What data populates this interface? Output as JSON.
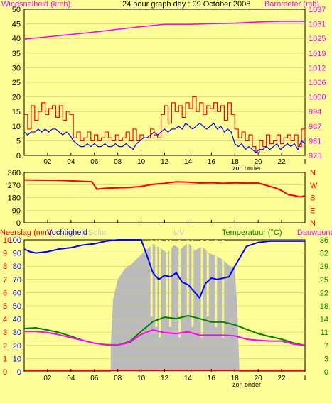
{
  "colors": {
    "background": "#ffff99",
    "wind_avg": "#0000ff",
    "wind_gust": "#ff0000",
    "barometer": "#ff00ff",
    "wind_dir": "#ff0000",
    "humidity": "#0000ff",
    "temperature": "#008000",
    "dewpoint": "#ff00ff",
    "solar": "#bbbbbb",
    "uv": "#ffff88",
    "rain": "#ff0000"
  },
  "chart_data": [
    {
      "type": "line",
      "title": "24 hour graph day : 09 October 2008",
      "ylabel_left": "Windsnelheid (kmh)",
      "ylabel_right": "Barometer (mb)",
      "x_ticks": [
        "02",
        "04",
        "06",
        "08",
        "10",
        "12",
        "14",
        "16",
        "18",
        "20",
        "22",
        "I"
      ],
      "x_note": "zon onder",
      "y_left": {
        "ticks": [
          "0",
          "5",
          "10",
          "15",
          "20",
          "25",
          "30",
          "35",
          "40",
          "45",
          "50"
        ],
        "ylim": [
          0,
          50
        ]
      },
      "y_right": {
        "ticks": [
          "975",
          "981",
          "987",
          "994",
          "1000",
          "1006",
          "1012",
          "1019",
          "1025",
          "1031",
          "1037"
        ],
        "ylim": [
          975,
          1037
        ]
      },
      "series": [
        {
          "key": "gust",
          "axis": "left",
          "color": "#ff0000",
          "step": true,
          "x": [
            0,
            0.3,
            0.6,
            0.9,
            1.2,
            1.5,
            1.8,
            2.1,
            2.4,
            2.7,
            3.0,
            3.3,
            3.6,
            3.9,
            4.2,
            4.5,
            4.8,
            5.1,
            5.4,
            5.7,
            6.0,
            6.3,
            6.6,
            6.9,
            7.2,
            7.5,
            7.8,
            8.1,
            8.4,
            8.7,
            9.0,
            9.3,
            9.6,
            9.9,
            10.2,
            10.5,
            10.8,
            11.1,
            11.4,
            11.7,
            12.0,
            12.3,
            12.6,
            12.9,
            13.2,
            13.5,
            13.8,
            14.1,
            14.4,
            14.7,
            15.0,
            15.3,
            15.6,
            15.9,
            16.2,
            16.5,
            16.8,
            17.1,
            17.4,
            17.7,
            18.0,
            18.3,
            18.6,
            18.9,
            19.2,
            19.5,
            19.8,
            20.1,
            20.4,
            20.7,
            21.0,
            21.3,
            21.6,
            21.9,
            22.2,
            22.5,
            22.8,
            23.1,
            23.4,
            23.7,
            24.0
          ],
          "values": [
            14,
            9,
            17,
            12,
            15,
            18,
            14,
            16,
            17,
            13,
            17,
            12,
            15,
            14,
            6,
            8,
            5,
            6,
            8,
            5,
            7,
            5,
            6,
            8,
            6,
            5,
            7,
            5,
            6,
            8,
            5,
            9,
            5,
            7,
            6,
            6,
            9,
            7,
            6,
            14,
            17,
            11,
            18,
            15,
            17,
            13,
            18,
            16,
            20,
            15,
            18,
            14,
            17,
            16,
            18,
            15,
            17,
            12,
            18,
            14,
            9,
            6,
            8,
            5,
            7,
            3,
            1,
            5,
            3,
            7,
            4,
            5,
            7,
            4,
            6,
            7,
            5,
            7,
            3,
            9,
            6
          ]
        },
        {
          "key": "avg",
          "axis": "left",
          "color": "#0000ff",
          "step": false,
          "x": [
            0,
            0.3,
            0.6,
            0.9,
            1.2,
            1.5,
            1.8,
            2.1,
            2.4,
            2.7,
            3.0,
            3.3,
            3.6,
            3.9,
            4.2,
            4.5,
            4.8,
            5.1,
            5.4,
            5.7,
            6.0,
            6.3,
            6.6,
            6.9,
            7.2,
            7.5,
            7.8,
            8.1,
            8.4,
            8.7,
            9.0,
            9.3,
            9.6,
            9.9,
            10.2,
            10.5,
            10.8,
            11.1,
            11.4,
            11.7,
            12.0,
            12.3,
            12.6,
            12.9,
            13.2,
            13.5,
            13.8,
            14.1,
            14.4,
            14.7,
            15.0,
            15.3,
            15.6,
            15.9,
            16.2,
            16.5,
            16.8,
            17.1,
            17.4,
            17.7,
            18.0,
            18.3,
            18.6,
            18.9,
            19.2,
            19.5,
            19.8,
            20.1,
            20.4,
            20.7,
            21.0,
            21.3,
            21.6,
            21.9,
            22.2,
            22.5,
            22.8,
            23.1,
            23.4,
            23.7,
            24.0
          ],
          "values": [
            8,
            7,
            8,
            8,
            9,
            8,
            9,
            8,
            9,
            9,
            8,
            7,
            8,
            7,
            5,
            4,
            3,
            3,
            4,
            3,
            4,
            3,
            3,
            4,
            3,
            3,
            4,
            3,
            3,
            4,
            3,
            2,
            4,
            5,
            6,
            6,
            7,
            8,
            7,
            8,
            9,
            8,
            9,
            9,
            10,
            9,
            11,
            10,
            9,
            10,
            11,
            10,
            9,
            10,
            11,
            9,
            10,
            8,
            9,
            8,
            4,
            3,
            4,
            2,
            3,
            2,
            1,
            2,
            2,
            3,
            2,
            3,
            4,
            2,
            3,
            4,
            3,
            4,
            2,
            5,
            4
          ]
        },
        {
          "key": "barometer",
          "axis": "right",
          "color": "#ff00ff",
          "step": false,
          "x": [
            0,
            2,
            4,
            6,
            8,
            10,
            12,
            14,
            16,
            18,
            20,
            22,
            24
          ],
          "values": [
            1024.3,
            1025.3,
            1026.3,
            1027.3,
            1028.5,
            1029.6,
            1030.6,
            1030.6,
            1030.9,
            1031.1,
            1031.6,
            1031.9,
            1031.9
          ]
        }
      ]
    },
    {
      "type": "line",
      "y_left": {
        "ticks": [
          "0",
          "90",
          "180",
          "270",
          "360"
        ],
        "ylim": [
          0,
          360
        ]
      },
      "y_right": {
        "ticks": [
          "N",
          "W",
          "S",
          "E",
          "N"
        ]
      },
      "series": [
        {
          "key": "direction",
          "color": "#ff0000",
          "x": [
            0,
            1,
            2,
            3,
            4,
            5,
            5.8,
            6.2,
            7,
            8,
            9,
            10,
            11,
            12,
            13,
            14,
            15,
            16,
            17,
            18,
            19,
            20,
            20.6,
            21,
            21.6,
            22,
            22.6,
            23,
            23.6,
            24
          ],
          "values": [
            306,
            305,
            304,
            303,
            300,
            296,
            293,
            240,
            247,
            250,
            252,
            260,
            275,
            282,
            293,
            290,
            284,
            286,
            282,
            285,
            283,
            284,
            270,
            260,
            245,
            230,
            200,
            196,
            185,
            192
          ]
        }
      ]
    },
    {
      "type": "line",
      "legend": [
        "Neerslag (mm)",
        "Vochtigheid",
        "Solar",
        "UV",
        "Temperatuur (°C)",
        "Dauwpunt"
      ],
      "x_ticks": [
        "02",
        "04",
        "06",
        "08",
        "10",
        "12",
        "14",
        "16",
        "18",
        "20",
        "22",
        "I"
      ],
      "x_note": "zon onder",
      "y_left_outer": {
        "ticks": [
          "0",
          "1",
          "2",
          "3",
          "4",
          "5",
          "6",
          "7",
          "8",
          "9",
          "10"
        ]
      },
      "y_left_inner": {
        "ticks": [
          "0",
          "10",
          "20",
          "30",
          "40",
          "50",
          "60",
          "70",
          "80",
          "90",
          "100"
        ],
        "ylim": [
          0,
          100
        ]
      },
      "y_right": {
        "ticks": [
          "0",
          "3",
          "7",
          "11",
          "14",
          "18",
          "22",
          "25",
          "29",
          "32",
          "36"
        ],
        "ylim": [
          0,
          36
        ]
      },
      "series": [
        {
          "key": "humidity",
          "color": "#0000ff",
          "axis": "inner",
          "x": [
            0,
            0.5,
            1,
            2,
            3,
            4,
            5,
            6,
            7,
            8,
            9,
            9.5,
            10,
            10.5,
            11,
            11.5,
            12,
            12.5,
            13,
            13.5,
            14,
            14.5,
            15,
            15.5,
            16,
            16.5,
            17,
            17.5,
            18,
            19,
            20,
            21,
            22,
            23,
            24
          ],
          "values": [
            93,
            91,
            90,
            91,
            93,
            94,
            96,
            97,
            99,
            100,
            100,
            100,
            100,
            88,
            75,
            70,
            73,
            72,
            75,
            68,
            66,
            61,
            56,
            67,
            71,
            70,
            71,
            72,
            80,
            95,
            98,
            99,
            99,
            99,
            99
          ]
        },
        {
          "key": "temperature",
          "color": "#008000",
          "axis": "right",
          "x": [
            0,
            1,
            2,
            3,
            4,
            5,
            6,
            7,
            8,
            9,
            10,
            11,
            12,
            13,
            14,
            15,
            16,
            17,
            18,
            19,
            20,
            21,
            22,
            23,
            24
          ],
          "values": [
            11.8,
            12.0,
            11.4,
            10.7,
            9.7,
            8.6,
            7.8,
            7.4,
            7.3,
            8.2,
            11.0,
            13.7,
            14.9,
            14.5,
            15.3,
            14.5,
            13.6,
            13.6,
            12.8,
            11.6,
            10.4,
            9.6,
            8.9,
            7.9,
            7.2
          ]
        },
        {
          "key": "dewpoint",
          "color": "#ff00ff",
          "axis": "right",
          "x": [
            0,
            1,
            2,
            3,
            4,
            5,
            6,
            7,
            8,
            9,
            10,
            11,
            12,
            13,
            14,
            15,
            16,
            17,
            18,
            19,
            20,
            21,
            22,
            23,
            24
          ],
          "values": [
            11.0,
            11.0,
            10.7,
            10.1,
            9.3,
            8.6,
            7.8,
            7.4,
            7.3,
            8.0,
            10.2,
            11.4,
            10.7,
            10.4,
            10.9,
            10.0,
            10.0,
            10.0,
            9.8,
            8.9,
            8.6,
            8.4,
            8.4,
            7.6,
            7.2
          ]
        },
        {
          "key": "rain",
          "color": "#ff0000",
          "axis": "outer",
          "x": [
            0,
            24
          ],
          "values": [
            0,
            0
          ]
        }
      ]
    }
  ]
}
